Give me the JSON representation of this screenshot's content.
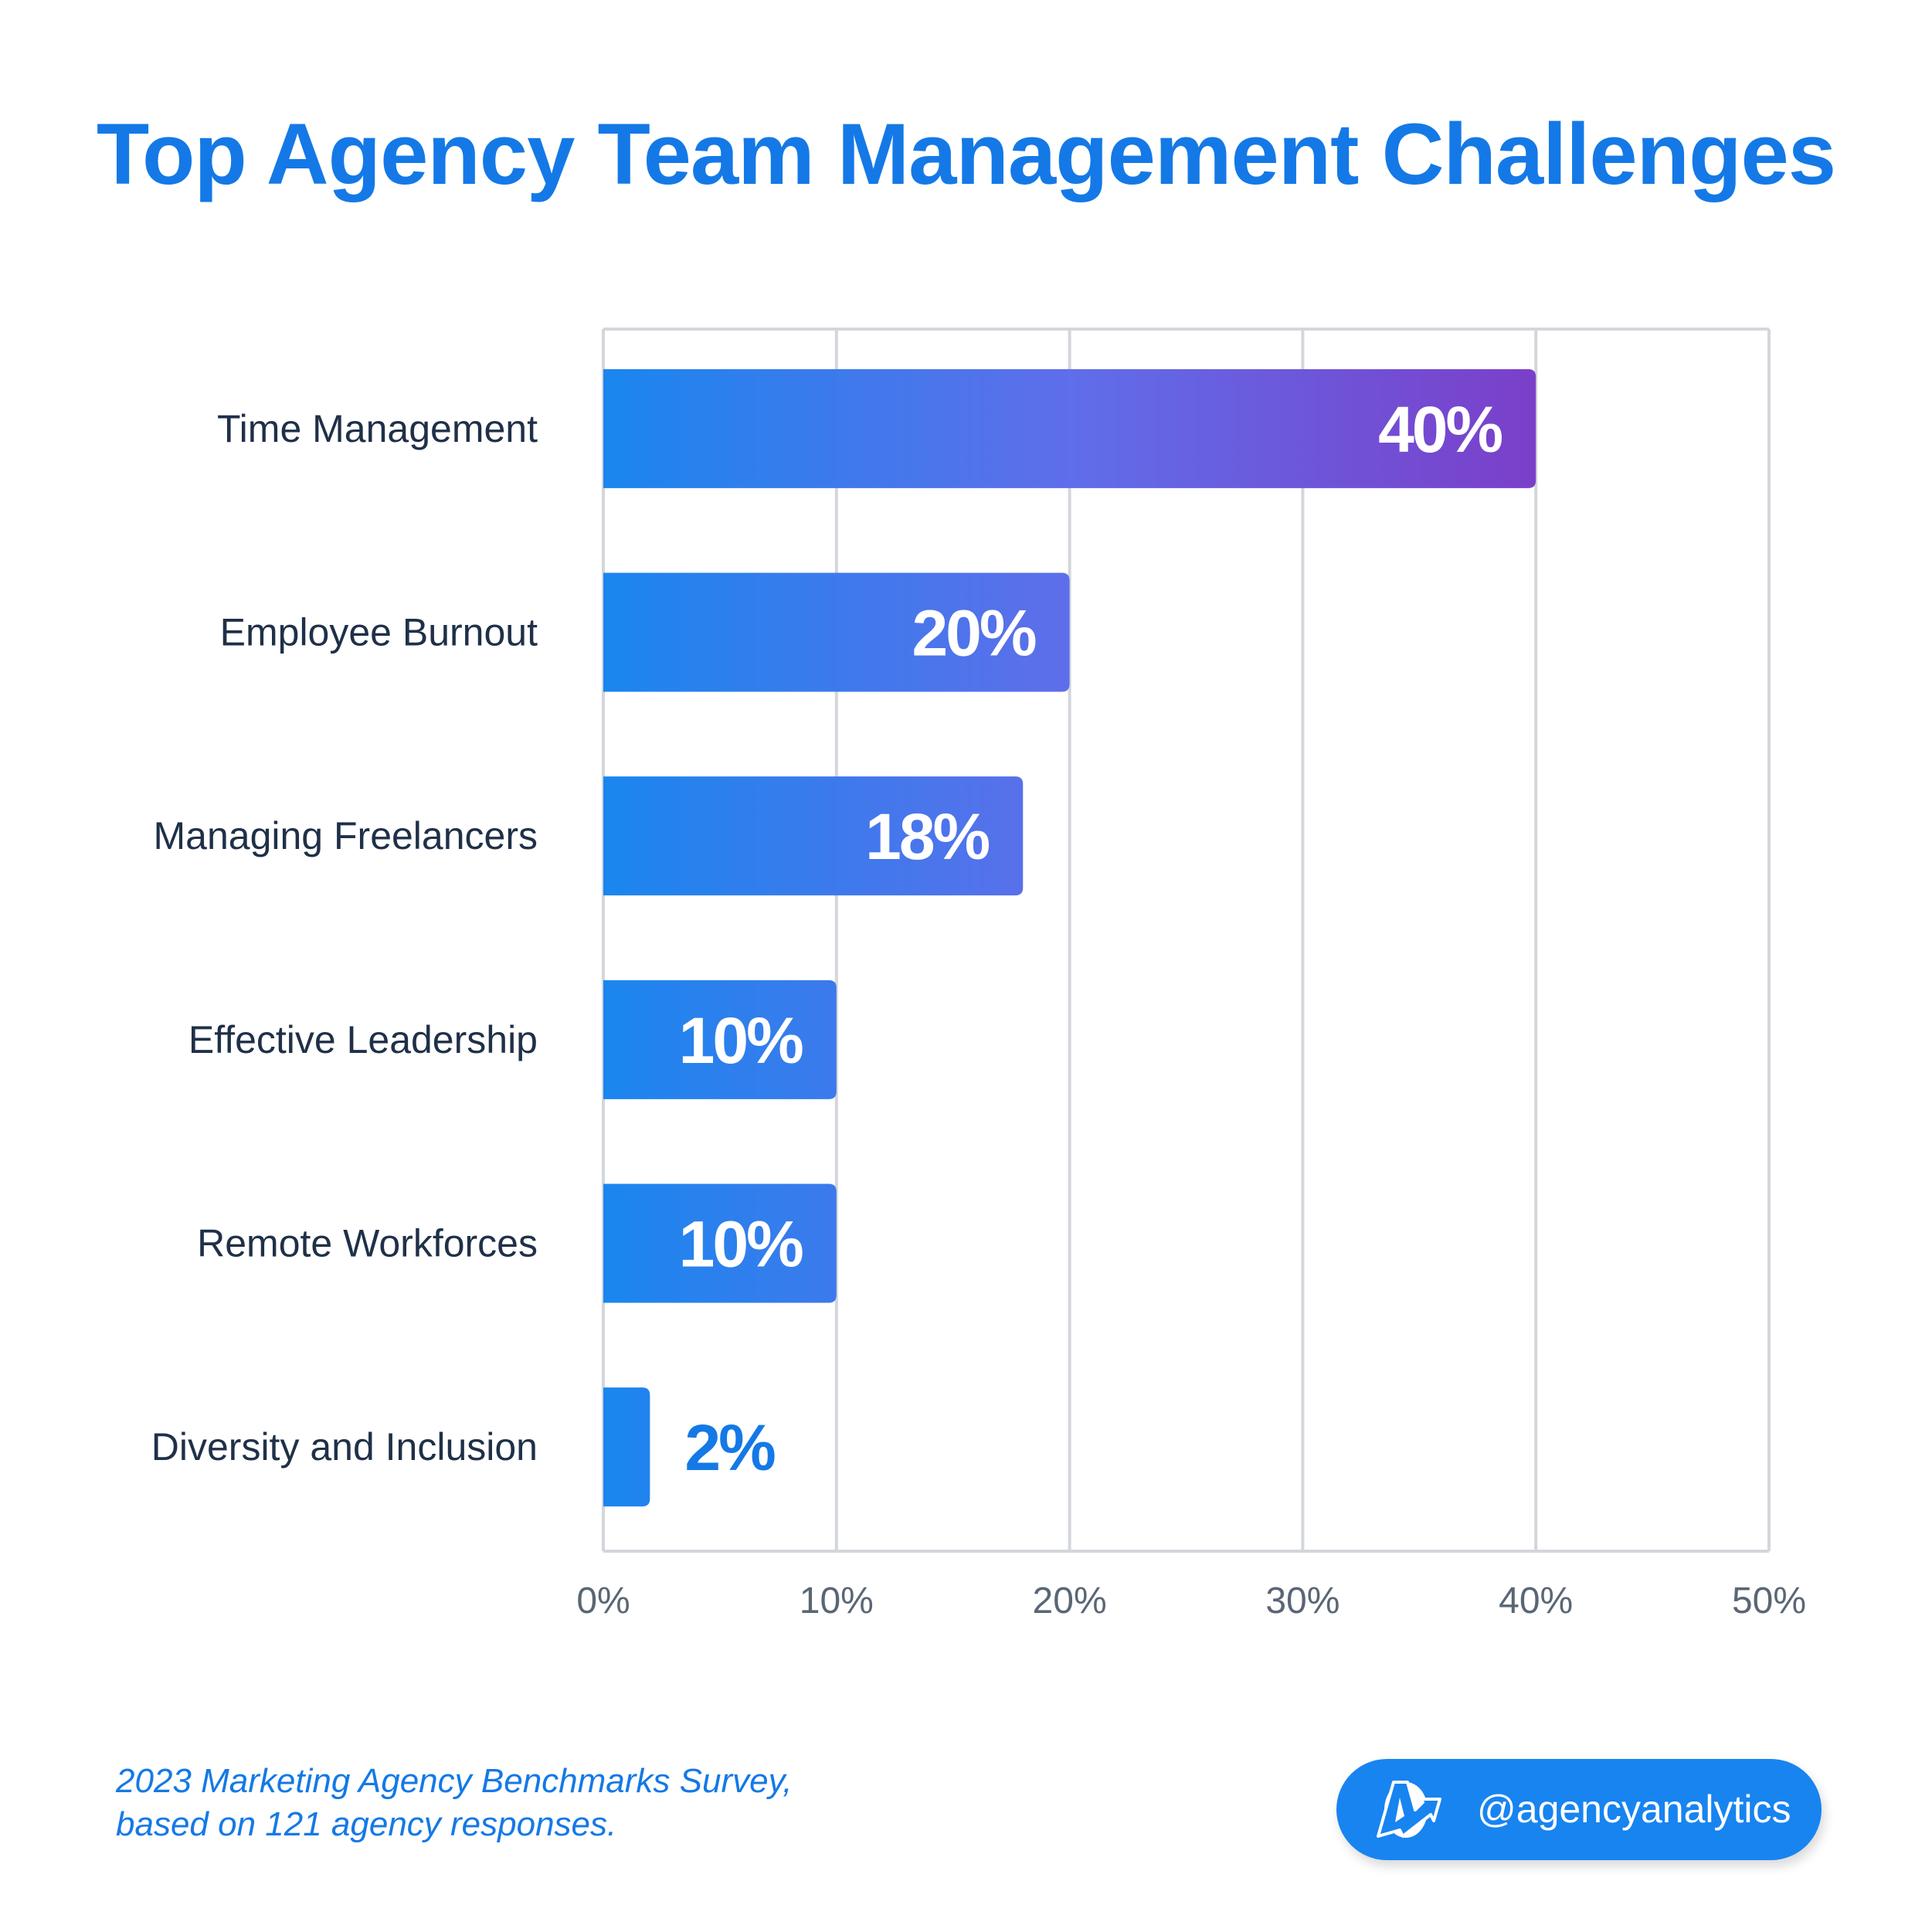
{
  "chart_data": {
    "type": "bar",
    "orientation": "horizontal",
    "title": "Top Agency Team Management Challenges",
    "categories": [
      "Time Management",
      "Employee Burnout",
      "Managing Freelancers",
      "Effective Leadership",
      "Remote Workforces",
      "Diversity and Inclusion"
    ],
    "values": [
      40,
      20,
      18,
      10,
      10,
      2
    ],
    "value_labels": [
      "40%",
      "20%",
      "18%",
      "10%",
      "10%",
      "2%"
    ],
    "xlim": [
      0,
      50
    ],
    "x_ticks": [
      0,
      10,
      20,
      30,
      40,
      50
    ],
    "x_tick_labels": [
      "0%",
      "10%",
      "20%",
      "30%",
      "40%",
      "50%"
    ],
    "grid": true,
    "colors": {
      "gradient_start": "#1a86ee",
      "gradient_mid": "#5f6eea",
      "gradient_end": "#7b3fc9",
      "label_outside": "#1479e6",
      "title": "#1479e6",
      "category_text": "#1f3048",
      "tick_text": "#5a6675",
      "grid": "#d3d6db"
    }
  },
  "footnote": {
    "line1": "2023 Marketing Agency Benchmarks Survey,",
    "line2": "based on 121 agency responses."
  },
  "badge": {
    "handle": "@agencyanalytics",
    "icon": "agencyanalytics-logo-icon"
  }
}
